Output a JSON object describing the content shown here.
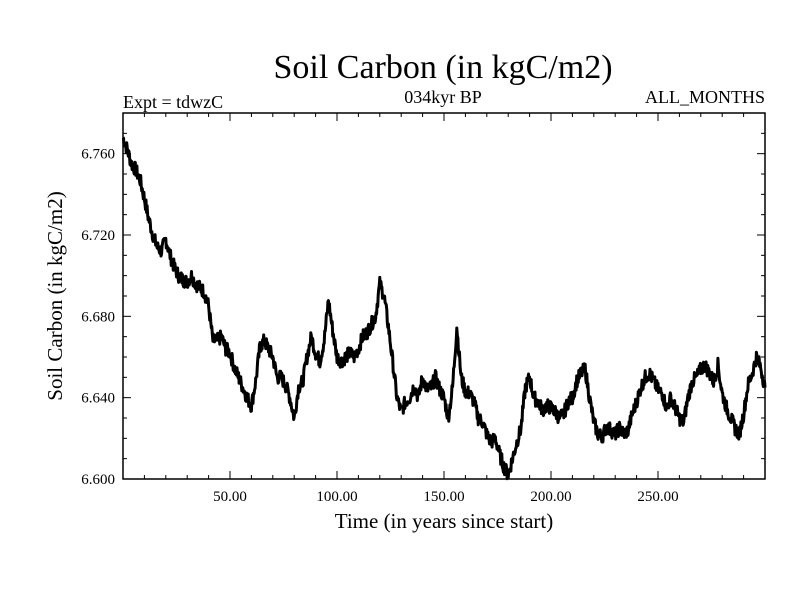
{
  "chart_data": {
    "type": "line",
    "title": "Soil Carbon (in kgC/m2)",
    "subtitle_left": "Expt = tdwzC",
    "subtitle_center": "034kyr BP",
    "subtitle_right": "ALL_MONTHS",
    "xlabel": "Time (in years since start)",
    "ylabel": "Soil Carbon (in kgC/m2)",
    "xlim": [
      0,
      300
    ],
    "ylim": [
      6.6,
      6.78
    ],
    "x_ticks": [
      50,
      100,
      150,
      200,
      250
    ],
    "x_tick_labels": [
      "50.00",
      "100.00",
      "150.00",
      "200.00",
      "250.00"
    ],
    "y_ticks": [
      6.6,
      6.64,
      6.68,
      6.72,
      6.76
    ],
    "y_tick_labels": [
      "6.600",
      "6.640",
      "6.680",
      "6.720",
      "6.760"
    ],
    "grid": false,
    "series": [
      {
        "color": "#000000",
        "x": [
          0,
          2,
          4,
          6,
          8,
          10,
          12,
          14,
          16,
          18,
          20,
          22,
          24,
          26,
          28,
          30,
          32,
          34,
          36,
          38,
          40,
          42,
          44,
          46,
          48,
          50,
          52,
          54,
          56,
          58,
          60,
          62,
          64,
          66,
          68,
          70,
          72,
          74,
          76,
          78,
          80,
          82,
          84,
          86,
          88,
          90,
          92,
          94,
          96,
          98,
          100,
          102,
          104,
          106,
          108,
          110,
          112,
          114,
          116,
          118,
          120,
          122,
          124,
          126,
          128,
          130,
          132,
          134,
          136,
          138,
          140,
          142,
          144,
          146,
          148,
          150,
          152,
          154,
          156,
          158,
          160,
          162,
          164,
          166,
          168,
          170,
          172,
          174,
          176,
          178,
          180,
          182,
          184,
          186,
          188,
          190,
          192,
          194,
          196,
          198,
          200,
          202,
          204,
          206,
          208,
          210,
          212,
          214,
          216,
          218,
          220,
          222,
          224,
          226,
          228,
          230,
          232,
          234,
          236,
          238,
          240,
          242,
          244,
          246,
          248,
          250,
          252,
          254,
          256,
          258,
          260,
          262,
          264,
          266,
          268,
          270,
          272,
          274,
          276,
          278,
          280,
          282,
          284,
          286,
          288,
          290,
          292,
          294,
          296,
          298,
          300
        ],
        "values": [
          6.768,
          6.762,
          6.755,
          6.752,
          6.747,
          6.738,
          6.728,
          6.72,
          6.714,
          6.712,
          6.718,
          6.71,
          6.704,
          6.7,
          6.698,
          6.697,
          6.7,
          6.696,
          6.694,
          6.692,
          6.685,
          6.668,
          6.668,
          6.67,
          6.664,
          6.662,
          6.655,
          6.65,
          6.645,
          6.64,
          6.636,
          6.648,
          6.665,
          6.668,
          6.664,
          6.66,
          6.65,
          6.65,
          6.646,
          6.64,
          6.63,
          6.645,
          6.648,
          6.66,
          6.67,
          6.662,
          6.658,
          6.668,
          6.688,
          6.673,
          6.66,
          6.658,
          6.66,
          6.662,
          6.66,
          6.664,
          6.67,
          6.672,
          6.676,
          6.68,
          6.696,
          6.69,
          6.675,
          6.658,
          6.64,
          6.633,
          6.638,
          6.64,
          6.646,
          6.64,
          6.65,
          6.644,
          6.645,
          6.65,
          6.644,
          6.64,
          6.63,
          6.645,
          6.675,
          6.65,
          6.643,
          6.642,
          6.638,
          6.63,
          6.628,
          6.622,
          6.618,
          6.62,
          6.612,
          6.606,
          6.602,
          6.61,
          6.618,
          6.625,
          6.645,
          6.65,
          6.64,
          6.638,
          6.634,
          6.636,
          6.635,
          6.633,
          6.63,
          6.632,
          6.638,
          6.64,
          6.648,
          6.652,
          6.654,
          6.64,
          6.628,
          6.622,
          6.621,
          6.626,
          6.624,
          6.622,
          6.625,
          6.622,
          6.624,
          6.632,
          6.638,
          6.645,
          6.65,
          6.652,
          6.648,
          6.644,
          6.642,
          6.635,
          6.64,
          6.635,
          6.63,
          6.628,
          6.64,
          6.648,
          6.65,
          6.654,
          6.656,
          6.652,
          6.648,
          6.656,
          6.642,
          6.635,
          6.63,
          6.625,
          6.622,
          6.632,
          6.646,
          6.652,
          6.66,
          6.655,
          6.645
        ]
      }
    ]
  }
}
